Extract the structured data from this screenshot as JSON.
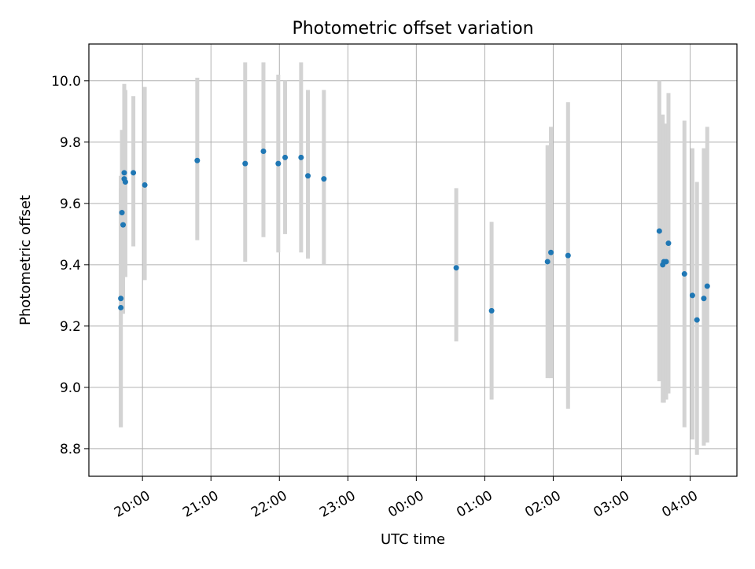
{
  "chart_data": {
    "type": "scatter",
    "title": "Photometric offset variation",
    "xlabel": "UTC time",
    "ylabel": "Photometric offset",
    "x_tick_labels": [
      "20:00",
      "21:00",
      "22:00",
      "23:00",
      "00:00",
      "01:00",
      "02:00",
      "03:00",
      "04:00"
    ],
    "y_tick_labels": [
      "8.8",
      "9.0",
      "9.2",
      "9.4",
      "9.6",
      "9.8",
      "10.0"
    ],
    "y_ticks": [
      8.8,
      9.0,
      9.2,
      9.4,
      9.6,
      9.8,
      10.0
    ],
    "xlim": [
      "19:13",
      "04:41"
    ],
    "ylim": [
      8.71,
      10.12
    ],
    "grid": true,
    "colors": {
      "point": "#1f77b4",
      "errorbar": "#d3d3d3",
      "grid": "#b0b0b0"
    },
    "points": [
      {
        "x": "19:41",
        "y": 9.29,
        "lo": 8.87,
        "hi": 9.69
      },
      {
        "x": "19:41",
        "y": 9.26,
        "lo": 8.87,
        "hi": 9.65
      },
      {
        "x": "19:42",
        "y": 9.57,
        "lo": 9.3,
        "hi": 9.84
      },
      {
        "x": "19:43",
        "y": 9.53,
        "lo": 9.24,
        "hi": 9.64
      },
      {
        "x": "19:44",
        "y": 9.7,
        "lo": 9.4,
        "hi": 9.99
      },
      {
        "x": "19:44",
        "y": 9.68,
        "lo": 9.37,
        "hi": 9.98
      },
      {
        "x": "19:45",
        "y": 9.67,
        "lo": 9.36,
        "hi": 9.97
      },
      {
        "x": "19:52",
        "y": 9.7,
        "lo": 9.46,
        "hi": 9.95
      },
      {
        "x": "20:02",
        "y": 9.66,
        "lo": 9.35,
        "hi": 9.98
      },
      {
        "x": "20:48",
        "y": 9.74,
        "lo": 9.48,
        "hi": 10.01
      },
      {
        "x": "21:30",
        "y": 9.73,
        "lo": 9.41,
        "hi": 10.06
      },
      {
        "x": "21:46",
        "y": 9.77,
        "lo": 9.49,
        "hi": 10.06
      },
      {
        "x": "21:59",
        "y": 9.73,
        "lo": 9.44,
        "hi": 10.02
      },
      {
        "x": "22:05",
        "y": 9.75,
        "lo": 9.5,
        "hi": 10.0
      },
      {
        "x": "22:19",
        "y": 9.75,
        "lo": 9.44,
        "hi": 10.06
      },
      {
        "x": "22:25",
        "y": 9.69,
        "lo": 9.42,
        "hi": 9.97
      },
      {
        "x": "22:39",
        "y": 9.68,
        "lo": 9.4,
        "hi": 9.97
      },
      {
        "x": "00:35",
        "y": 9.39,
        "lo": 9.15,
        "hi": 9.65
      },
      {
        "x": "01:06",
        "y": 9.25,
        "lo": 8.96,
        "hi": 9.54
      },
      {
        "x": "01:55",
        "y": 9.41,
        "lo": 9.03,
        "hi": 9.79
      },
      {
        "x": "01:58",
        "y": 9.44,
        "lo": 9.03,
        "hi": 9.85
      },
      {
        "x": "02:13",
        "y": 9.43,
        "lo": 8.93,
        "hi": 9.93
      },
      {
        "x": "03:33",
        "y": 9.51,
        "lo": 9.02,
        "hi": 10.0
      },
      {
        "x": "03:36",
        "y": 9.4,
        "lo": 8.95,
        "hi": 9.89
      },
      {
        "x": "03:37",
        "y": 9.41,
        "lo": 8.95,
        "hi": 9.86
      },
      {
        "x": "03:39",
        "y": 9.41,
        "lo": 8.96,
        "hi": 9.86
      },
      {
        "x": "03:41",
        "y": 9.47,
        "lo": 8.98,
        "hi": 9.96
      },
      {
        "x": "03:55",
        "y": 9.37,
        "lo": 8.87,
        "hi": 9.87
      },
      {
        "x": "04:02",
        "y": 9.3,
        "lo": 8.83,
        "hi": 9.78
      },
      {
        "x": "04:06",
        "y": 9.22,
        "lo": 8.78,
        "hi": 9.67
      },
      {
        "x": "04:12",
        "y": 9.29,
        "lo": 8.81,
        "hi": 9.78
      },
      {
        "x": "04:15",
        "y": 9.33,
        "lo": 8.82,
        "hi": 9.85
      }
    ]
  }
}
